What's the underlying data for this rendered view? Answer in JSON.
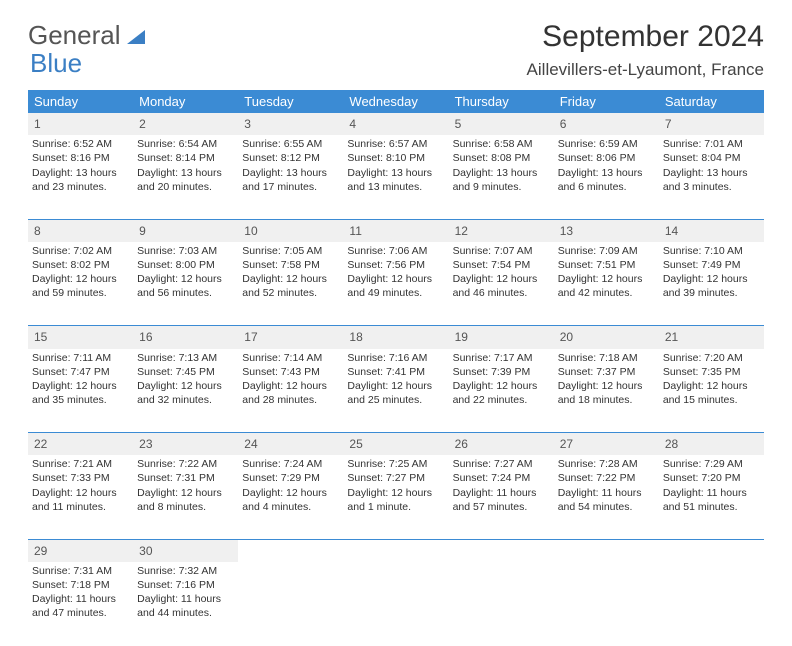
{
  "logo": {
    "word1": "General",
    "word2": "Blue"
  },
  "title": "September 2024",
  "location": "Aillevillers-et-Lyaumont, France",
  "colors": {
    "header_bg": "#3b8bd4",
    "header_text": "#ffffff",
    "daynum_bg": "#f0f0f0",
    "border": "#3b8bd4",
    "logo_gray": "#6b6b6b",
    "logo_blue": "#3b7fc4"
  },
  "weekdays": [
    "Sunday",
    "Monday",
    "Tuesday",
    "Wednesday",
    "Thursday",
    "Friday",
    "Saturday"
  ],
  "days": [
    {
      "n": "1",
      "sr": "6:52 AM",
      "ss": "8:16 PM",
      "dl": "13 hours and 23 minutes."
    },
    {
      "n": "2",
      "sr": "6:54 AM",
      "ss": "8:14 PM",
      "dl": "13 hours and 20 minutes."
    },
    {
      "n": "3",
      "sr": "6:55 AM",
      "ss": "8:12 PM",
      "dl": "13 hours and 17 minutes."
    },
    {
      "n": "4",
      "sr": "6:57 AM",
      "ss": "8:10 PM",
      "dl": "13 hours and 13 minutes."
    },
    {
      "n": "5",
      "sr": "6:58 AM",
      "ss": "8:08 PM",
      "dl": "13 hours and 9 minutes."
    },
    {
      "n": "6",
      "sr": "6:59 AM",
      "ss": "8:06 PM",
      "dl": "13 hours and 6 minutes."
    },
    {
      "n": "7",
      "sr": "7:01 AM",
      "ss": "8:04 PM",
      "dl": "13 hours and 3 minutes."
    },
    {
      "n": "8",
      "sr": "7:02 AM",
      "ss": "8:02 PM",
      "dl": "12 hours and 59 minutes."
    },
    {
      "n": "9",
      "sr": "7:03 AM",
      "ss": "8:00 PM",
      "dl": "12 hours and 56 minutes."
    },
    {
      "n": "10",
      "sr": "7:05 AM",
      "ss": "7:58 PM",
      "dl": "12 hours and 52 minutes."
    },
    {
      "n": "11",
      "sr": "7:06 AM",
      "ss": "7:56 PM",
      "dl": "12 hours and 49 minutes."
    },
    {
      "n": "12",
      "sr": "7:07 AM",
      "ss": "7:54 PM",
      "dl": "12 hours and 46 minutes."
    },
    {
      "n": "13",
      "sr": "7:09 AM",
      "ss": "7:51 PM",
      "dl": "12 hours and 42 minutes."
    },
    {
      "n": "14",
      "sr": "7:10 AM",
      "ss": "7:49 PM",
      "dl": "12 hours and 39 minutes."
    },
    {
      "n": "15",
      "sr": "7:11 AM",
      "ss": "7:47 PM",
      "dl": "12 hours and 35 minutes."
    },
    {
      "n": "16",
      "sr": "7:13 AM",
      "ss": "7:45 PM",
      "dl": "12 hours and 32 minutes."
    },
    {
      "n": "17",
      "sr": "7:14 AM",
      "ss": "7:43 PM",
      "dl": "12 hours and 28 minutes."
    },
    {
      "n": "18",
      "sr": "7:16 AM",
      "ss": "7:41 PM",
      "dl": "12 hours and 25 minutes."
    },
    {
      "n": "19",
      "sr": "7:17 AM",
      "ss": "7:39 PM",
      "dl": "12 hours and 22 minutes."
    },
    {
      "n": "20",
      "sr": "7:18 AM",
      "ss": "7:37 PM",
      "dl": "12 hours and 18 minutes."
    },
    {
      "n": "21",
      "sr": "7:20 AM",
      "ss": "7:35 PM",
      "dl": "12 hours and 15 minutes."
    },
    {
      "n": "22",
      "sr": "7:21 AM",
      "ss": "7:33 PM",
      "dl": "12 hours and 11 minutes."
    },
    {
      "n": "23",
      "sr": "7:22 AM",
      "ss": "7:31 PM",
      "dl": "12 hours and 8 minutes."
    },
    {
      "n": "24",
      "sr": "7:24 AM",
      "ss": "7:29 PM",
      "dl": "12 hours and 4 minutes."
    },
    {
      "n": "25",
      "sr": "7:25 AM",
      "ss": "7:27 PM",
      "dl": "12 hours and 1 minute."
    },
    {
      "n": "26",
      "sr": "7:27 AM",
      "ss": "7:24 PM",
      "dl": "11 hours and 57 minutes."
    },
    {
      "n": "27",
      "sr": "7:28 AM",
      "ss": "7:22 PM",
      "dl": "11 hours and 54 minutes."
    },
    {
      "n": "28",
      "sr": "7:29 AM",
      "ss": "7:20 PM",
      "dl": "11 hours and 51 minutes."
    },
    {
      "n": "29",
      "sr": "7:31 AM",
      "ss": "7:18 PM",
      "dl": "11 hours and 47 minutes."
    },
    {
      "n": "30",
      "sr": "7:32 AM",
      "ss": "7:16 PM",
      "dl": "11 hours and 44 minutes."
    }
  ],
  "labels": {
    "sunrise": "Sunrise: ",
    "sunset": "Sunset: ",
    "daylight": "Daylight: "
  },
  "start_weekday": 0,
  "days_in_month": 30
}
